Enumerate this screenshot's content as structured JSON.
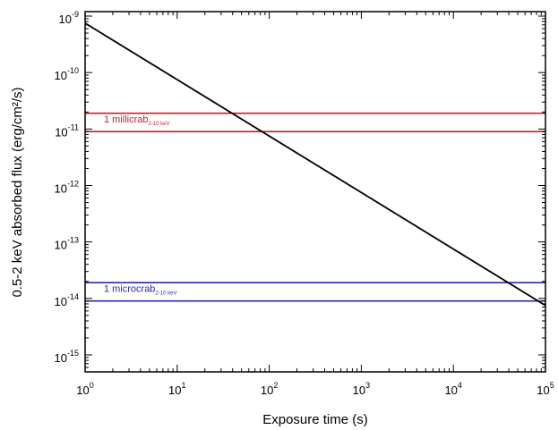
{
  "chart_data": {
    "type": "line",
    "xlabel": "Exposure time (s)",
    "ylabel": "0.5-2 keV absorbed flux (erg/cm²/s)",
    "xscale": "log",
    "yscale": "log",
    "xlim": [
      1,
      100000
    ],
    "ylim": [
      5e-16,
      1.2e-09
    ],
    "grid": false,
    "x_ticks": [
      {
        "value": 1,
        "base": "10",
        "exp": "0"
      },
      {
        "value": 10,
        "base": "10",
        "exp": "1"
      },
      {
        "value": 100,
        "base": "10",
        "exp": "2"
      },
      {
        "value": 1000,
        "base": "10",
        "exp": "3"
      },
      {
        "value": 10000,
        "base": "10",
        "exp": "4"
      },
      {
        "value": 100000,
        "base": "10",
        "exp": "5"
      }
    ],
    "y_ticks": [
      {
        "value": 1e-09,
        "base": "10",
        "exp": "-9"
      },
      {
        "value": 1e-10,
        "base": "10",
        "exp": "-10"
      },
      {
        "value": 1e-11,
        "base": "10",
        "exp": "-11"
      },
      {
        "value": 1e-12,
        "base": "10",
        "exp": "-12"
      },
      {
        "value": 1e-13,
        "base": "10",
        "exp": "-13"
      },
      {
        "value": 1e-14,
        "base": "10",
        "exp": "-14"
      },
      {
        "value": 1e-15,
        "base": "10",
        "exp": "-15"
      }
    ],
    "series": [
      {
        "color": "#000000",
        "x": [
          1,
          100000
        ],
        "y": [
          7.5e-10,
          7.5e-15
        ]
      }
    ],
    "hlines": [
      {
        "y": 1.9e-11,
        "color": "#c0202a"
      },
      {
        "y": 9e-12,
        "color": "#c0202a"
      },
      {
        "y": 1.9e-14,
        "color": "#2a2aa8"
      },
      {
        "y": 9e-15,
        "color": "#2a2aa8"
      }
    ],
    "annotations": [
      {
        "text": "1 millicrab",
        "sub": "2-10 keV",
        "x": 1.6,
        "y": 1.3e-11,
        "color": "#c0202a"
      },
      {
        "text": "1 microcrab",
        "sub": "2-10 keV",
        "x": 1.6,
        "y": 1.3e-14,
        "color": "#2a2aa8"
      }
    ]
  }
}
